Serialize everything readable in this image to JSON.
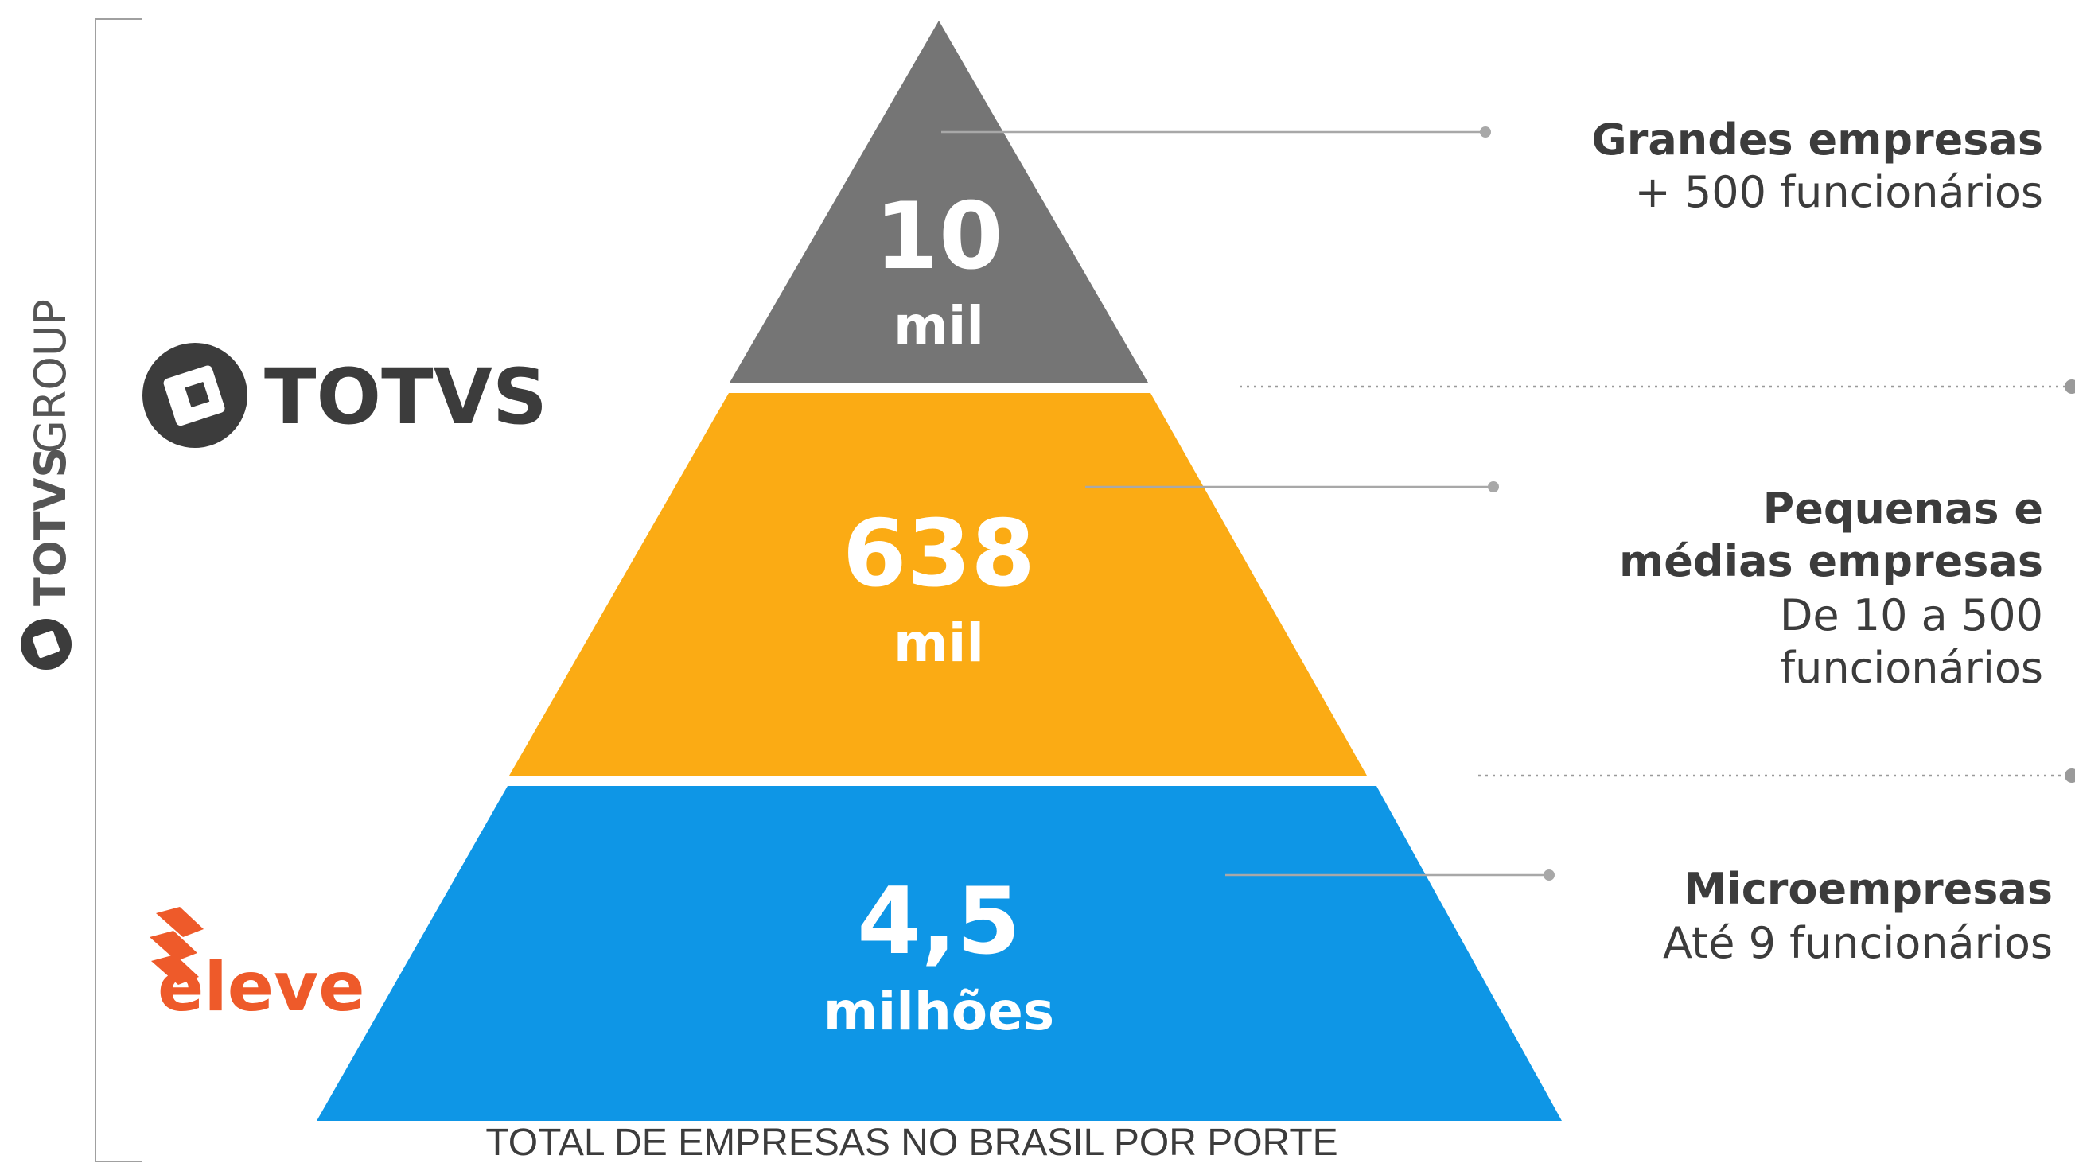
{
  "colors": {
    "top": "#757575",
    "middle": "#fbab14",
    "bottom": "#0e96e6",
    "text_dark": "#3c3c3c",
    "eleve": "#ee5a2a",
    "line": "#a0a0a0"
  },
  "group_label": {
    "brand": "TOTVS",
    "suffix": "GROUP"
  },
  "brands": {
    "totvs": "TOTVS",
    "eleve": "eleve"
  },
  "pyramid": {
    "top": {
      "value": "10",
      "unit": "mil",
      "title": [
        "Grandes empresas"
      ],
      "desc": [
        "+ 500 funcionários"
      ]
    },
    "middle": {
      "value": "638",
      "unit": "mil",
      "title": [
        "Pequenas e",
        "médias empresas"
      ],
      "desc": [
        "De 10 a 500",
        "funcionários"
      ]
    },
    "bottom": {
      "value": "4,5",
      "unit": "milhões",
      "title": [
        "Microempresas"
      ],
      "desc": [
        "Até 9 funcionários"
      ]
    }
  },
  "caption": "TOTAL DE EMPRESAS NO BRASIL POR PORTE"
}
